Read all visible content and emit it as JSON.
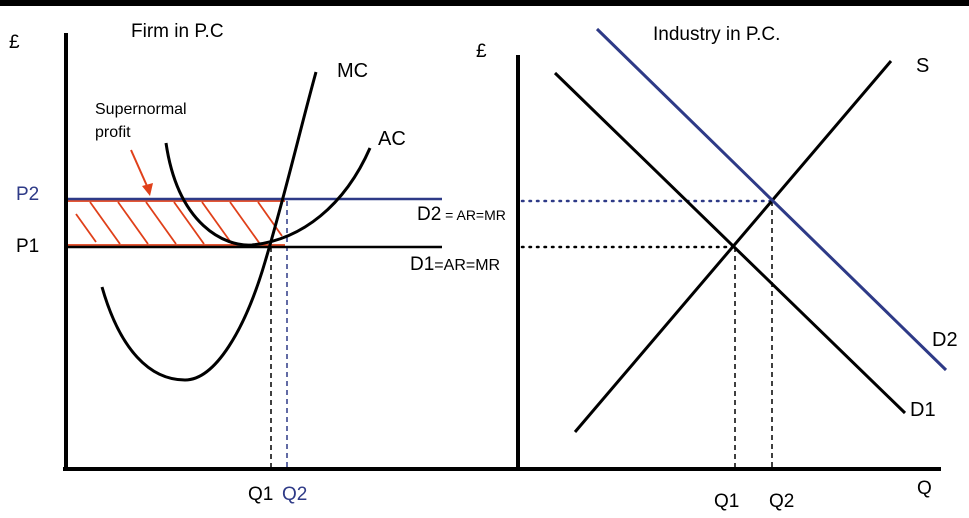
{
  "colors": {
    "axis": "#000000",
    "curve": "#000000",
    "shift_line": "#2e3a87",
    "profit_hatch": "#e0401a"
  },
  "firm_panel": {
    "title": "Firm in P.C",
    "y_axis_label": "£",
    "curves": {
      "mc": "MC",
      "ac": "AC"
    },
    "price_levels": {
      "p2": "P2",
      "p1": "P1"
    },
    "demand_labels": {
      "d2_prefix": "D2",
      "d2_suffix": " = AR=MR",
      "d1_prefix": "D1",
      "d1_suffix": "=AR=MR"
    },
    "quantities": {
      "q1": "Q1",
      "q2": "Q2"
    },
    "annotation": {
      "line1": "Supernormal",
      "line2": "profit"
    }
  },
  "industry_panel": {
    "title": "Industry in P.C.",
    "y_axis_label": "£",
    "x_axis_label": "Q",
    "curves": {
      "supply": "S",
      "demand_new": "D2",
      "demand_old": "D1"
    },
    "quantities": {
      "q1": "Q1",
      "q2": "Q2"
    }
  }
}
